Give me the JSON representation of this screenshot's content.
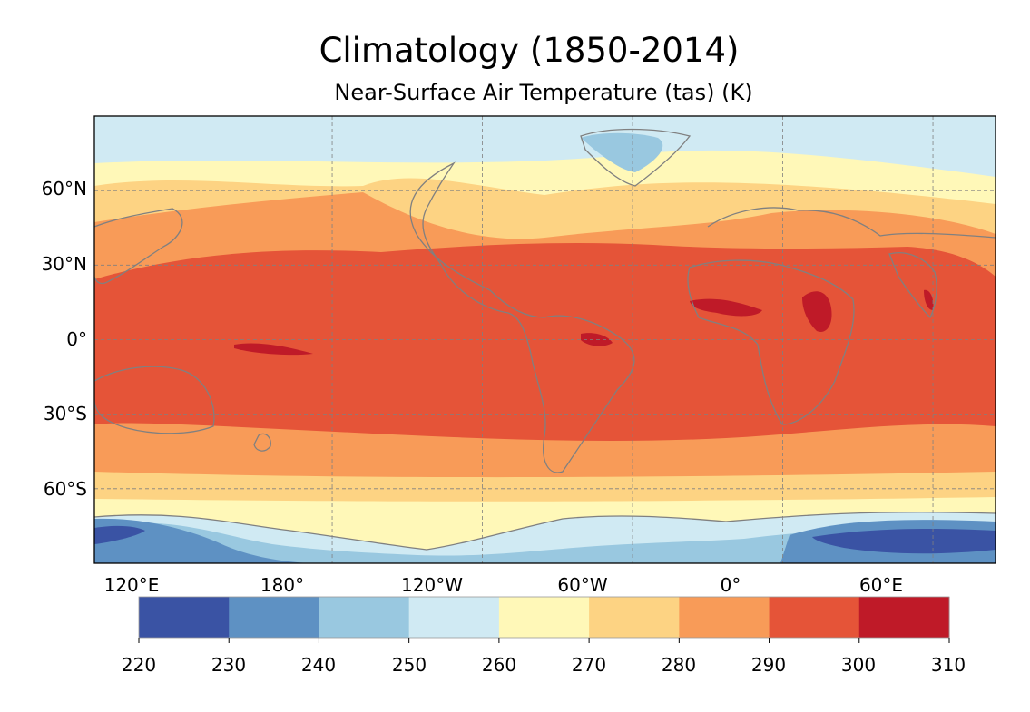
{
  "title": "Climatology (1850-2014)",
  "subtitle": "Near-Surface Air Temperature (tas) (K)",
  "map": {
    "projection": "PlateCarree",
    "central_longitude": -150,
    "lon_range": [
      -335,
      25
    ],
    "lat_range": [
      -90,
      90
    ],
    "lat_labels": [
      "60°N",
      "30°N",
      "0°",
      "30°S",
      "60°S"
    ],
    "lat_values": [
      60,
      30,
      0,
      -30,
      -60
    ],
    "lon_labels": [
      "120°E",
      "180°",
      "120°W",
      "60°W",
      "0°",
      "60°E"
    ],
    "lon_values": [
      120,
      180,
      240,
      300,
      360,
      420
    ],
    "coastline_color": "#808080",
    "grid_color": "#808080"
  },
  "colorbar": {
    "levels": [
      220,
      230,
      240,
      250,
      260,
      270,
      280,
      290,
      300,
      310
    ],
    "tick_labels": [
      "220",
      "230",
      "240",
      "250",
      "260",
      "270",
      "280",
      "290",
      "300",
      "310"
    ],
    "colors": [
      "#3a53a4",
      "#5e91c3",
      "#99c8e0",
      "#d0eaf3",
      "#fff8b8",
      "#fdd383",
      "#f89b58",
      "#e55438",
      "#bf1a28"
    ],
    "orientation": "horizontal"
  }
}
